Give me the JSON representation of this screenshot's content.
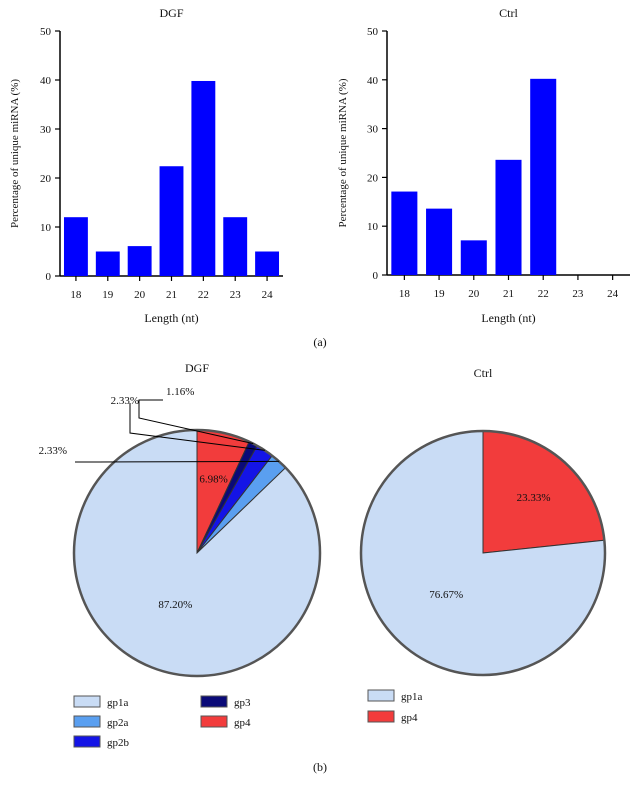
{
  "chart_data": [
    {
      "panel": "a",
      "type": "bar",
      "title": "DGF",
      "xlabel": "Length (nt)",
      "ylabel": "Percentage of unique miRNA (%)",
      "categories": [
        "18",
        "19",
        "20",
        "21",
        "22",
        "23",
        "24"
      ],
      "values": [
        12,
        5,
        6.1,
        22.4,
        39.8,
        12,
        5
      ],
      "ylim": [
        0,
        50
      ],
      "yticks": [
        "0",
        "10",
        "20",
        "30",
        "40",
        "50"
      ],
      "color": "#0000ff"
    },
    {
      "panel": "a",
      "type": "bar",
      "title": "Ctrl",
      "xlabel": "Length (nt)",
      "ylabel": "Percentage of unique miRNA (%)",
      "categories": [
        "18",
        "19",
        "20",
        "21",
        "22",
        "23",
        "24"
      ],
      "values": [
        17.1,
        13.6,
        7.1,
        23.6,
        40.2,
        0,
        0
      ],
      "ylim": [
        0,
        50
      ],
      "yticks": [
        "0",
        "10",
        "20",
        "30",
        "40",
        "50"
      ],
      "color": "#0000ff"
    },
    {
      "panel": "b",
      "type": "pie",
      "title": "DGF",
      "slices": [
        {
          "name": "gp4",
          "value": 6.98,
          "label": "6.98%",
          "color": "#f23c3c"
        },
        {
          "name": "gp3",
          "value": 1.16,
          "label": "1.16%",
          "color": "#0a0a78"
        },
        {
          "name": "gp2b",
          "value": 2.33,
          "label": "2.33%",
          "color": "#1414e6"
        },
        {
          "name": "gp2a",
          "value": 2.33,
          "label": "2.33%",
          "color": "#5a9ff0"
        },
        {
          "name": "gp1a",
          "value": 87.2,
          "label": "87.20%",
          "color": "#c9dcf5"
        }
      ],
      "legend": [
        "gp1a",
        "gp2a",
        "gp2b",
        "gp3",
        "gp4"
      ]
    },
    {
      "panel": "b",
      "type": "pie",
      "title": "Ctrl",
      "slices": [
        {
          "name": "gp4",
          "value": 23.33,
          "label": "23.33%",
          "color": "#f23c3c"
        },
        {
          "name": "gp1a",
          "value": 76.67,
          "label": "76.67%",
          "color": "#c9dcf5"
        }
      ],
      "legend": [
        "gp1a",
        "gp4"
      ]
    }
  ],
  "captions": {
    "a": "(a)",
    "b": "(b)"
  }
}
